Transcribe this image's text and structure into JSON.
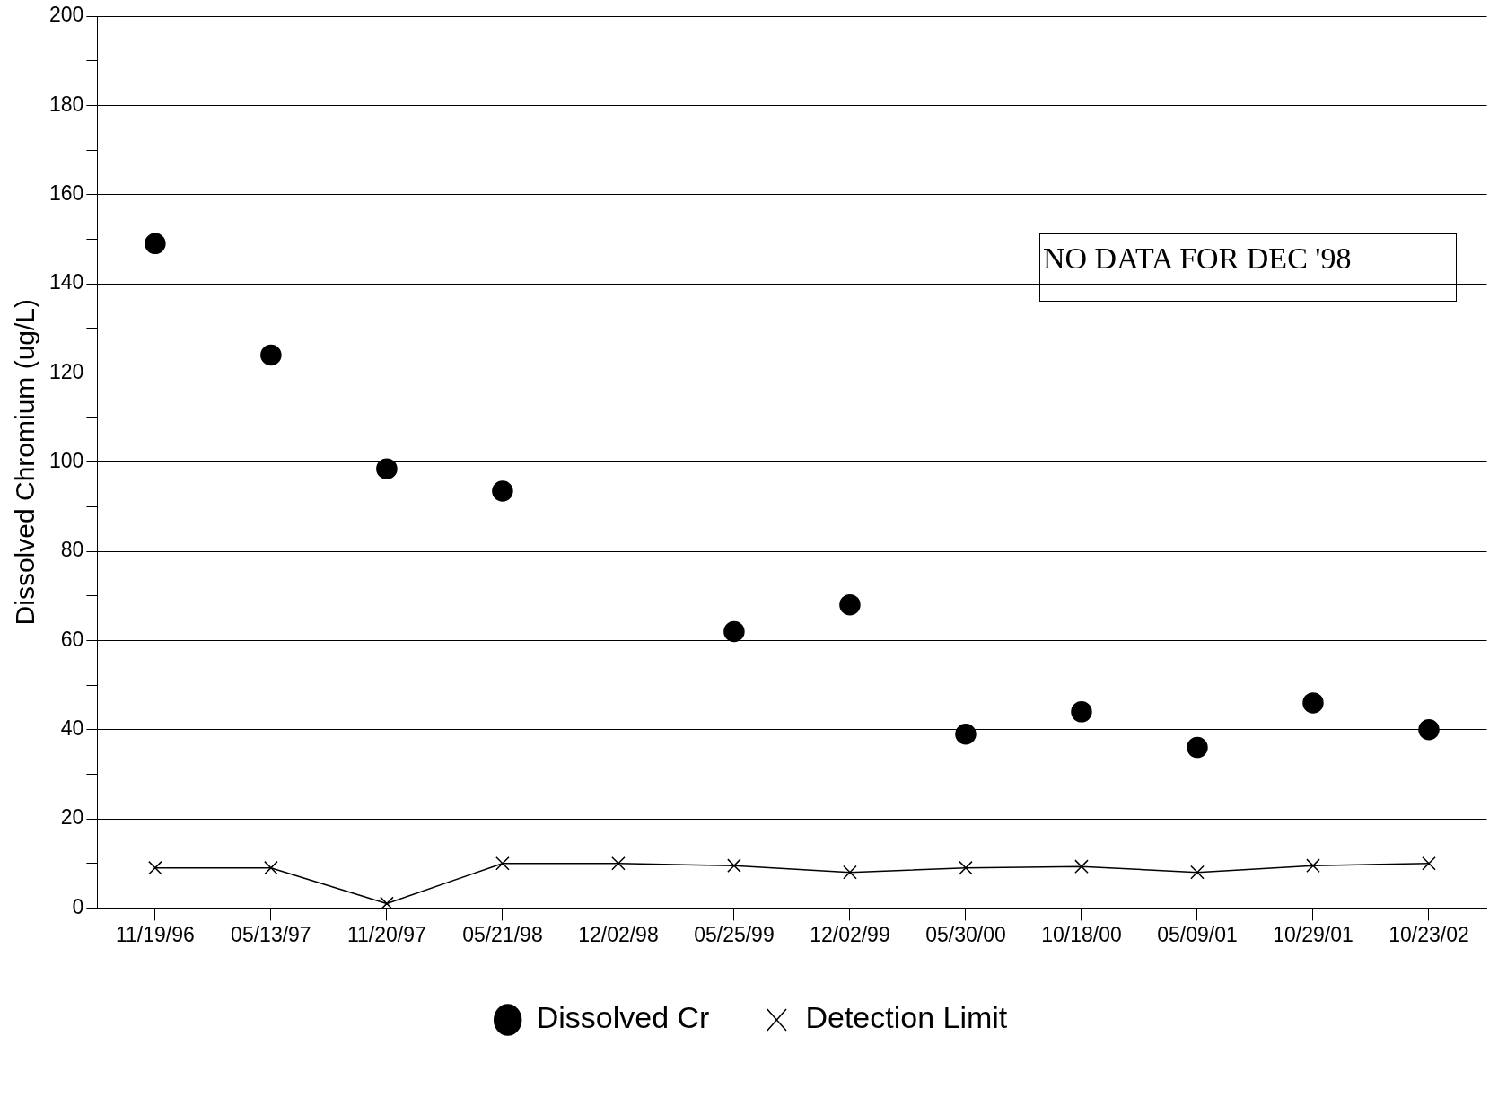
{
  "chart_data": {
    "type": "line",
    "ylabel": "Dissolved Chromium (ug/L)",
    "categories": [
      "11/19/96",
      "05/13/97",
      "11/20/97",
      "05/21/98",
      "12/02/98",
      "05/25/99",
      "12/02/99",
      "05/30/00",
      "10/18/00",
      "05/09/01",
      "10/29/01",
      "10/23/02"
    ],
    "series": [
      {
        "name": "Dissolved Cr",
        "type": "scatter",
        "marker": "circle",
        "color": "#000000",
        "values": [
          149,
          124,
          98.5,
          93.5,
          null,
          62,
          68,
          39,
          44,
          36,
          46,
          40
        ]
      },
      {
        "name": "Detection Limit",
        "type": "line",
        "marker": "cross",
        "color": "#000000",
        "values": [
          9,
          9,
          1,
          10,
          10,
          9.5,
          8,
          9,
          9.3,
          8,
          9.5,
          10
        ]
      }
    ],
    "ylim": [
      0,
      200
    ],
    "yticks": [
      0,
      {
        "value": 10,
        "label": null
      },
      20,
      {
        "value": 30,
        "label": null
      },
      40,
      {
        "value": 50,
        "label": null
      },
      60,
      {
        "value": 70,
        "label": null
      },
      80,
      {
        "value": 90,
        "label": null
      },
      100,
      {
        "value": 110,
        "label": null
      },
      120,
      {
        "value": 130,
        "label": null
      },
      140,
      {
        "value": 150,
        "label": null
      },
      160,
      {
        "value": 170,
        "label": null
      },
      180,
      {
        "value": 190,
        "label": null
      },
      200
    ],
    "grid": "y",
    "legend": "bottom",
    "annotations": [
      "NO DATA FOR DEC '98"
    ]
  }
}
